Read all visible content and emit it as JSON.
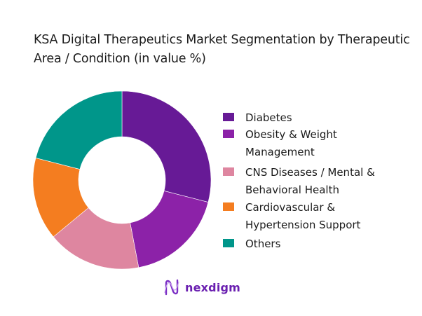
{
  "title": "KSA Digital Therapeutics Market Segmentation by Therapeutic Area / Condition (in value %)",
  "chart_data": {
    "type": "pie",
    "subtype": "donut",
    "title": "KSA Digital Therapeutics Market Segmentation by Therapeutic Area / Condition (in value %)",
    "categories": [
      "Diabetes",
      "Obesity & Weight Management",
      "CNS Diseases / Mental & Behavioral Health",
      "Cardiovascular & Hypertension Support",
      "Others"
    ],
    "values": [
      29,
      18,
      17,
      15,
      21
    ],
    "colors": [
      "#671A96",
      "#8C22A8",
      "#DE86A0",
      "#F47D20",
      "#00968A"
    ],
    "legend_position": "right",
    "start_angle": "12 o'clock, clockwise"
  },
  "legend": [
    {
      "label": "Diabetes",
      "color": "#671A96"
    },
    {
      "label": "Obesity & Weight Management",
      "color": "#8C22A8"
    },
    {
      "label": "CNS Diseases / Mental & Behavioral Health",
      "color": "#DE86A0"
    },
    {
      "label": "Cardiovascular & Hypertension Support",
      "color": "#F47D20"
    },
    {
      "label": "Others",
      "color": "#00968A"
    }
  ],
  "logo": {
    "text": "nexdigm",
    "color": "#6a1fb0"
  }
}
